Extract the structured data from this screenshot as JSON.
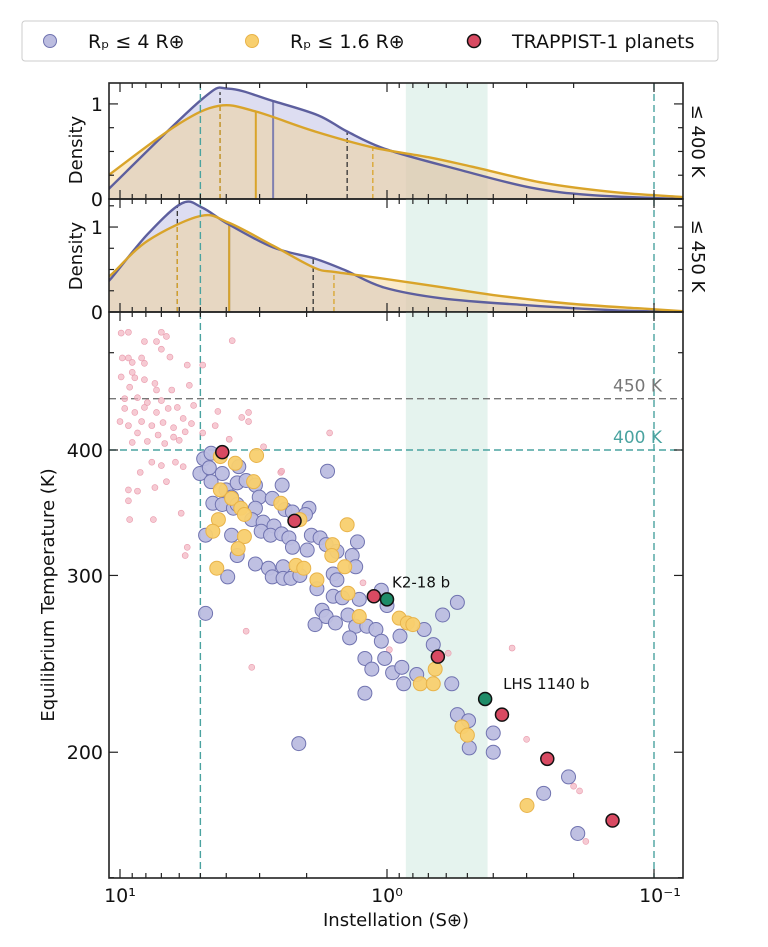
{
  "legend": {
    "position": "top",
    "entries": [
      {
        "label": "Rₚ ≤ 4 R⊕",
        "color": "#bcbde0",
        "edge": "#7073b0"
      },
      {
        "label": "Rₚ ≤ 1.6 R⊕",
        "color": "#f8cf6e",
        "edge": "#e8b34a"
      },
      {
        "label": "TRAPPIST-1 planets",
        "color": "#d84a62",
        "edge": "#111111"
      }
    ]
  },
  "colors": {
    "rp4_line": "#5d5f9e",
    "rp4_fill": "#b4b4e0",
    "rp16_line": "#d9a42a",
    "rp16_fill": "#f3d08a",
    "teal_dashed": "#4aa3a0",
    "gray_dashed": "#777777",
    "band": "#e5f3ee",
    "pink": "#f2b3c1",
    "green": "#1e8c68"
  },
  "chart_data": [
    {
      "type": "area",
      "panel": "density-400K",
      "ylabel": "Density",
      "side_label": "≤ 400 K",
      "xscale": "log",
      "xlim": [
        11.1,
        0.08
      ],
      "x_reversed": true,
      "ylim": [
        0,
        1.22
      ],
      "yticks": [
        {
          "value": 0,
          "label": "0"
        },
        {
          "value": 1,
          "label": "1"
        }
      ],
      "series": [
        {
          "name": "Rₚ ≤ 4 R⊕",
          "x": [
            10.8,
            4.93,
            3.91,
            2.67,
            1.81,
            1.41,
            1.0,
            0.54,
            0.29,
            0.17,
            0.078
          ],
          "y": [
            0.13,
            1.05,
            1.16,
            1.03,
            0.88,
            0.71,
            0.52,
            0.31,
            0.12,
            0.04,
            0.0
          ],
          "median": 2.67,
          "interval": [
            4.22,
            1.41
          ]
        },
        {
          "name": "Rₚ ≤ 1.6 R⊕",
          "x": [
            10.8,
            6.1,
            4.26,
            3.1,
            1.86,
            1.12,
            0.7,
            0.48,
            0.26,
            0.139,
            0.078
          ],
          "y": [
            0.27,
            0.78,
            0.98,
            0.92,
            0.71,
            0.54,
            0.44,
            0.34,
            0.17,
            0.07,
            0.02
          ],
          "median": 3.1,
          "interval": [
            4.22,
            1.13
          ]
        }
      ]
    },
    {
      "type": "area",
      "panel": "density-450K",
      "ylabel": "Density",
      "side_label": "≤ 450 K",
      "xscale": "log",
      "xlim": [
        11.1,
        0.08
      ],
      "x_reversed": true,
      "ylim": [
        0,
        1.33
      ],
      "yticks": [
        {
          "value": 0,
          "label": "0"
        },
        {
          "value": 1,
          "label": "1"
        }
      ],
      "series": [
        {
          "name": "Rₚ ≤ 4 R⊕",
          "x": [
            10.7,
            7.86,
            5.86,
            4.93,
            3.91,
            2.67,
            1.87,
            1.43,
            1.03,
            0.62,
            0.3,
            0.14,
            0.078
          ],
          "y": [
            0.41,
            0.92,
            1.28,
            1.23,
            1.03,
            0.76,
            0.63,
            0.49,
            0.29,
            0.16,
            0.08,
            0.02,
            0.0
          ],
          "median": 3.9,
          "interval": [
            6.1,
            1.89
          ]
        },
        {
          "name": "Rₚ ≤ 1.6 R⊕",
          "x": [
            10.7,
            7.86,
            5.0,
            3.91,
            2.67,
            1.87,
            1.56,
            1.07,
            0.62,
            0.4,
            0.21,
            0.11,
            0.078
          ],
          "y": [
            0.45,
            0.84,
            1.13,
            1.05,
            0.78,
            0.52,
            0.47,
            0.4,
            0.29,
            0.2,
            0.1,
            0.04,
            0.01
          ],
          "median": 3.9,
          "interval": [
            6.1,
            1.58
          ]
        }
      ]
    },
    {
      "type": "scatter",
      "panel": "temperature-vs-instellation",
      "xlabel": "Instellation (S⊕)",
      "ylabel": "Equilibrium Temperature (K)",
      "xscale": "log",
      "yscale": "log",
      "xlim": [
        11.1,
        0.08
      ],
      "x_reversed": true,
      "ylim": [
        150,
        548
      ],
      "xticks": [
        {
          "value": 10,
          "label": "10¹"
        },
        {
          "value": 1,
          "label": "10⁰"
        },
        {
          "value": 0.1,
          "label": "10⁻¹"
        }
      ],
      "yticks": [
        {
          "value": 200,
          "label": "200"
        },
        {
          "value": 300,
          "label": "300"
        },
        {
          "value": 400,
          "label": "400"
        }
      ],
      "hlines": [
        {
          "value": 450,
          "label": "450 K",
          "color": "#777777"
        },
        {
          "value": 400,
          "label": "400 K",
          "color": "#4aa3a0"
        }
      ],
      "vlines": [
        5.0,
        0.1
      ],
      "band": [
        0.85,
        0.42
      ],
      "background": [
        [
          9.9,
          523
        ],
        [
          9.3,
          524
        ],
        [
          8.1,
          513
        ],
        [
          7.3,
          513
        ],
        [
          7.0,
          524
        ],
        [
          6.7,
          519
        ],
        [
          3.8,
          514
        ],
        [
          7.0,
          504
        ],
        [
          9.8,
          494
        ],
        [
          9.0,
          489
        ],
        [
          8.3,
          494
        ],
        [
          8.1,
          488
        ],
        [
          6.5,
          495
        ],
        [
          5.6,
          486
        ],
        [
          4.9,
          486
        ],
        [
          9.9,
          473
        ],
        [
          9.0,
          478
        ],
        [
          8.8,
          472
        ],
        [
          8.1,
          470
        ],
        [
          7.4,
          466
        ],
        [
          9.2,
          462
        ],
        [
          7.3,
          459
        ],
        [
          6.4,
          459
        ],
        [
          5.5,
          464
        ],
        [
          9.6,
          450
        ],
        [
          8.6,
          451
        ],
        [
          7.9,
          446
        ],
        [
          7.0,
          448
        ],
        [
          9.6,
          440
        ],
        [
          8.8,
          436
        ],
        [
          8.1,
          441
        ],
        [
          7.3,
          436
        ],
        [
          6.6,
          440
        ],
        [
          6.1,
          441
        ],
        [
          5.3,
          443
        ],
        [
          4.3,
          437
        ],
        [
          3.5,
          431
        ],
        [
          3.3,
          436
        ],
        [
          3.3,
          427
        ],
        [
          10,
          427
        ],
        [
          9.3,
          423
        ],
        [
          8.3,
          427
        ],
        [
          7.6,
          423
        ],
        [
          6.9,
          426
        ],
        [
          6.3,
          421
        ],
        [
          5.8,
          430
        ],
        [
          5.4,
          425
        ],
        [
          4.4,
          423
        ],
        [
          4.9,
          416
        ],
        [
          8.6,
          416
        ],
        [
          7.2,
          414
        ],
        [
          6.3,
          412
        ],
        [
          5.7,
          417
        ],
        [
          9.0,
          407
        ],
        [
          7.9,
          408
        ],
        [
          6.8,
          406
        ],
        [
          6.0,
          409
        ],
        [
          3.9,
          410
        ],
        [
          2.9,
          403
        ],
        [
          7.6,
          389
        ],
        [
          7.0,
          386
        ],
        [
          6.2,
          389
        ],
        [
          5.8,
          385
        ],
        [
          8.4,
          380
        ],
        [
          2.5,
          380
        ],
        [
          9.3,
          494
        ],
        [
          1.23,
          295
        ],
        [
          3.37,
          264
        ],
        [
          3.21,
          243
        ],
        [
          0.34,
          254
        ],
        [
          0.3,
          206
        ],
        [
          0.2,
          185
        ],
        [
          0.19,
          183
        ],
        [
          0.18,
          163
        ],
        [
          0.59,
          251
        ],
        [
          0.98,
          253
        ],
        [
          1.64,
          416
        ],
        [
          2.48,
          381
        ],
        [
          5.6,
          320
        ],
        [
          5.7,
          314
        ],
        [
          7.5,
          341
        ],
        [
          9.2,
          341
        ],
        [
          9.3,
          365
        ],
        [
          8.6,
          364
        ],
        [
          9.3,
          356
        ],
        [
          5.9,
          346
        ],
        [
          7.4,
          367
        ],
        [
          6.7,
          372
        ]
      ],
      "series": [
        {
          "name": "Rₚ ≤ 4 R⊕",
          "points": [
            [
              4.86,
              392
            ],
            [
              4.56,
              397
            ],
            [
              5.02,
              379
            ],
            [
              4.63,
              384
            ],
            [
              4.14,
              379
            ],
            [
              4.56,
              372
            ],
            [
              4.01,
              365
            ],
            [
              3.64,
              371
            ],
            [
              3.37,
              373
            ],
            [
              3.11,
              369
            ],
            [
              2.47,
              369
            ],
            [
              4.49,
              354
            ],
            [
              4.14,
              353
            ],
            [
              3.76,
              350
            ],
            [
              3.82,
              359
            ],
            [
              3.01,
              359
            ],
            [
              2.69,
              358
            ],
            [
              3.11,
              350
            ],
            [
              2.41,
              349
            ],
            [
              2.26,
              347
            ],
            [
              1.96,
              350
            ],
            [
              2.02,
              345
            ],
            [
              3.21,
              341
            ],
            [
              2.91,
              339
            ],
            [
              2.65,
              336
            ],
            [
              2.96,
              332
            ],
            [
              2.73,
              329
            ],
            [
              2.48,
              330
            ],
            [
              2.33,
              327
            ],
            [
              2.26,
              320
            ],
            [
              4.78,
              329
            ],
            [
              3.82,
              329
            ],
            [
              3.64,
              314
            ],
            [
              3.11,
              308
            ],
            [
              2.78,
              305
            ],
            [
              2.45,
              306
            ],
            [
              2.69,
              299
            ],
            [
              2.45,
              298
            ],
            [
              2.29,
              298
            ],
            [
              2.12,
              300
            ],
            [
              1.99,
              318
            ],
            [
              1.92,
              329
            ],
            [
              1.78,
              327
            ],
            [
              1.69,
              322
            ],
            [
              1.54,
              317
            ],
            [
              1.35,
              314
            ],
            [
              1.31,
              306
            ],
            [
              1.29,
              324
            ],
            [
              1.67,
              381
            ],
            [
              1.83,
              291
            ],
            [
              1.59,
              301
            ],
            [
              1.54,
              297
            ],
            [
              1.59,
              286
            ],
            [
              1.47,
              285
            ],
            [
              1.27,
              284
            ],
            [
              1.05,
              290
            ],
            [
              1.0,
              280
            ],
            [
              1.75,
              277
            ],
            [
              1.69,
              273
            ],
            [
              1.86,
              268
            ],
            [
              1.56,
              269
            ],
            [
              1.4,
              274
            ],
            [
              1.31,
              267
            ],
            [
              1.19,
              267
            ],
            [
              1.1,
              265
            ],
            [
              1.05,
              258
            ],
            [
              1.38,
              260
            ],
            [
              1.21,
              248
            ],
            [
              1.14,
              242
            ],
            [
              1.02,
              248
            ],
            [
              0.953,
              240
            ],
            [
              0.88,
              243
            ],
            [
              0.774,
              239
            ],
            [
              0.866,
              234
            ],
            [
              1.21,
              229
            ],
            [
              0.726,
              265
            ],
            [
              0.894,
              261
            ],
            [
              0.671,
              256
            ],
            [
              0.619,
              274
            ],
            [
              0.545,
              282
            ],
            [
              0.572,
              234
            ],
            [
              4.78,
              275
            ],
            [
              2.14,
              204
            ],
            [
              0.545,
              218
            ],
            [
              0.495,
              215
            ],
            [
              0.4,
              209
            ],
            [
              0.492,
              202
            ],
            [
              0.4,
              200
            ],
            [
              0.209,
              189
            ],
            [
              0.259,
              182
            ],
            [
              0.193,
              166
            ],
            [
              3.95,
              299
            ],
            [
              3.64,
              353
            ],
            [
              3.59,
              385
            ]
          ]
        },
        {
          "name": "Rₚ ≤ 1.6 R⊕",
          "points": [
            [
              4.21,
              394
            ],
            [
              3.7,
              388
            ],
            [
              3.08,
              395
            ],
            [
              3.16,
              372
            ],
            [
              4.21,
              365
            ],
            [
              3.82,
              358
            ],
            [
              3.53,
              350
            ],
            [
              3.42,
              345
            ],
            [
              4.28,
              341
            ],
            [
              4.49,
              332
            ],
            [
              3.42,
              328
            ],
            [
              3.61,
              319
            ],
            [
              4.34,
              305
            ],
            [
              2.19,
              307
            ],
            [
              2.05,
              305
            ],
            [
              1.83,
              297
            ],
            [
              1.6,
              322
            ],
            [
              1.61,
              314
            ],
            [
              1.44,
              306
            ],
            [
              1.41,
              337
            ],
            [
              2.5,
              354
            ],
            [
              1.4,
              288
            ],
            [
              1.27,
              273
            ],
            [
              0.9,
              272
            ],
            [
              0.839,
              269
            ],
            [
              0.8,
              268
            ],
            [
              0.66,
              242
            ],
            [
              0.75,
              234
            ],
            [
              0.671,
              234
            ],
            [
              0.524,
              212
            ],
            [
              0.5,
              208
            ],
            [
              0.299,
              177
            ],
            [
              2.12,
              341
            ]
          ]
        },
        {
          "name": "TRAPPIST-1 planets",
          "points": [
            [
              4.14,
              398
            ],
            [
              2.22,
              340
            ],
            [
              1.12,
              286
            ],
            [
              0.645,
              249
            ],
            [
              0.371,
              218
            ],
            [
              0.251,
              197
            ],
            [
              0.143,
              171
            ]
          ]
        }
      ],
      "annotations": [
        {
          "label": "K2-18 b",
          "x": 1.0,
          "y": 284
        },
        {
          "label": "LHS 1140 b",
          "x": 0.429,
          "y": 226
        }
      ]
    }
  ]
}
